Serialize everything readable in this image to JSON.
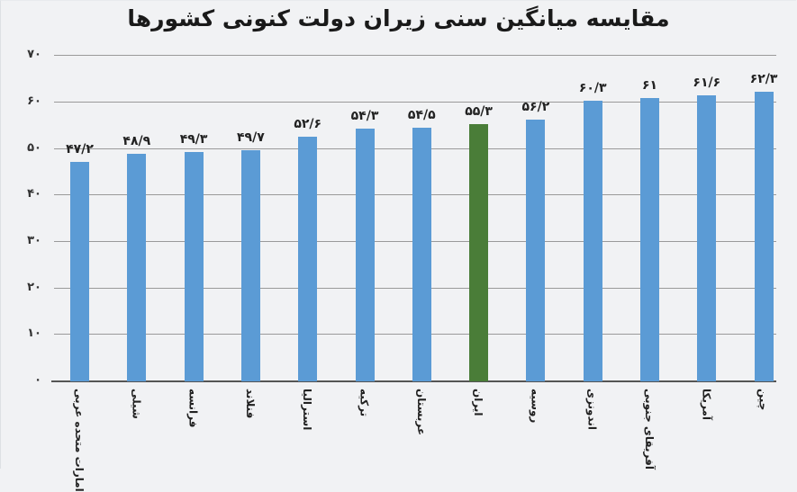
{
  "title": "مقایسه میانگین سنی زیران دولت کنونی کشورها",
  "colors": {
    "bar": "#5b9bd5",
    "highlight": "#4a7d38",
    "background": "#f1f2f4",
    "grid": "#9a9a9a"
  },
  "y_ticks": [
    "۰",
    "۱۰",
    "۲۰",
    "۳۰",
    "۴۰",
    "۵۰",
    "۶۰",
    "۷۰"
  ],
  "chart_data": {
    "type": "bar",
    "title": "مقایسه میانگین سنی زیران دولت کنونی کشورها",
    "xlabel": "",
    "ylabel": "",
    "ylim": [
      0,
      70
    ],
    "grid": true,
    "legend": "none",
    "categories": [
      "امارات متحده عربی",
      "شیلی",
      "فرانسه",
      "فنلاند",
      "استرالیا",
      "ترکیه",
      "عربستان",
      "ایران",
      "روسیه",
      "اندونزی",
      "آفریقای جنوبی",
      "آمریکا",
      "چین"
    ],
    "values": [
      47.2,
      48.9,
      49.3,
      49.7,
      52.6,
      54.3,
      54.5,
      55.3,
      56.2,
      60.3,
      61,
      61.6,
      62.3
    ],
    "value_labels": [
      "۴۷/۲",
      "۴۸/۹",
      "۴۹/۳",
      "۴۹/۷",
      "۵۲/۶",
      "۵۴/۳",
      "۵۴/۵",
      "۵۵/۳",
      "۵۶/۲",
      "۶۰/۳",
      "۶۱",
      "۶۱/۶",
      "۶۲/۳"
    ],
    "highlighted": [
      "ایران"
    ]
  }
}
